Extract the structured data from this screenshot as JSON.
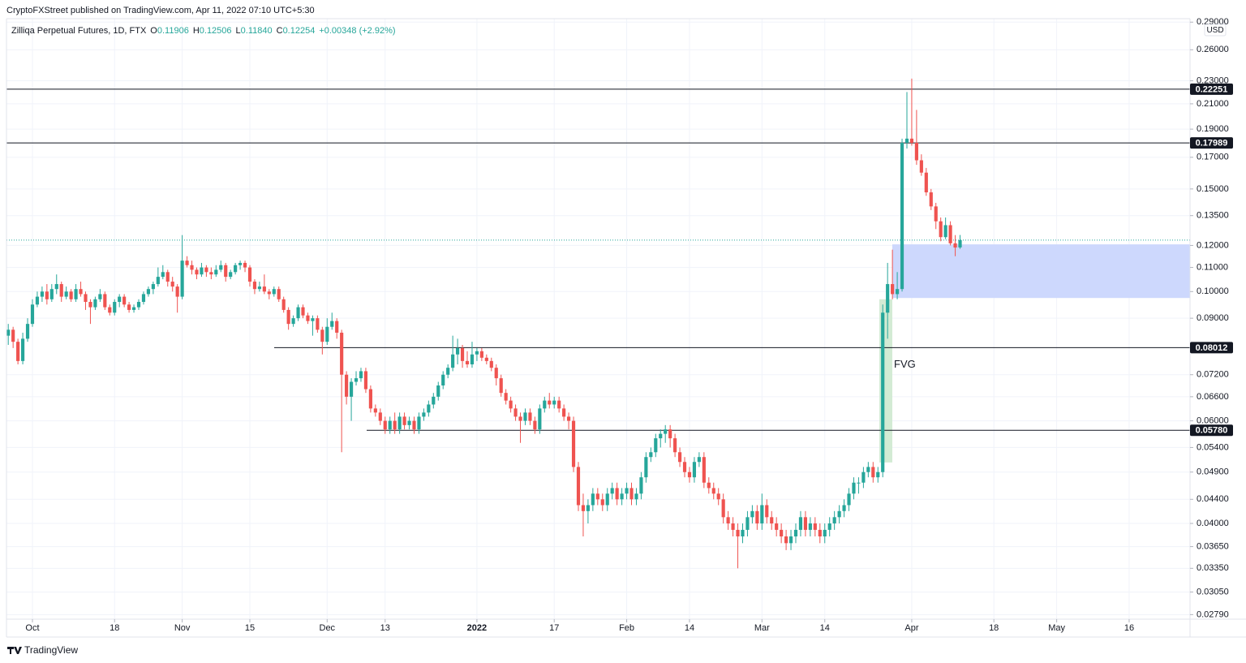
{
  "header": "CryptoFXStreet published on TradingView.com, Apr 11, 2022 07:10 UTC+5:30",
  "footer": "TradingView",
  "chart_data": {
    "type": "candlestick",
    "title": "Zilliqa Perpetual Futures, 1D, FTX",
    "legend": [
      {
        "key": "O",
        "value": "0.11906"
      },
      {
        "key": "H",
        "value": "0.12506"
      },
      {
        "key": "L",
        "value": "0.11840"
      },
      {
        "key": "C",
        "value": "0.12254"
      }
    ],
    "change": "+0.00348 (+2.92%)",
    "currency": "USD",
    "colors": {
      "up": "#26a69a",
      "down": "#ef5350"
    },
    "log_scale": true,
    "grid": true,
    "xlim": [
      -0.37,
      244.6
    ],
    "xticks": [
      {
        "value": 5,
        "label": "Oct"
      },
      {
        "value": 22,
        "label": "18"
      },
      {
        "value": 36,
        "label": "Nov"
      },
      {
        "value": 50,
        "label": "15"
      },
      {
        "value": 66,
        "label": "Dec"
      },
      {
        "value": 78,
        "label": "13"
      },
      {
        "value": 97,
        "label": "2022"
      },
      {
        "value": 113,
        "label": "17"
      },
      {
        "value": 128,
        "label": "Feb"
      },
      {
        "value": 141,
        "label": "14"
      },
      {
        "value": 156,
        "label": "Mar"
      },
      {
        "value": 169,
        "label": "14"
      },
      {
        "value": 187,
        "label": "Apr"
      },
      {
        "value": 204,
        "label": "18"
      },
      {
        "value": 217,
        "label": "May"
      },
      {
        "value": 232,
        "label": "16"
      }
    ],
    "ylim": [
      0.0274,
      0.294
    ],
    "yticks": [
      {
        "value": 0.29,
        "label": "0.29000"
      },
      {
        "value": 0.26,
        "label": "0.26000"
      },
      {
        "value": 0.23,
        "label": "0.23000"
      },
      {
        "value": 0.21,
        "label": "0.21000"
      },
      {
        "value": 0.19,
        "label": "0.19000"
      },
      {
        "value": 0.17,
        "label": "0.17000"
      },
      {
        "value": 0.15,
        "label": "0.15000"
      },
      {
        "value": 0.135,
        "label": "0.13500"
      },
      {
        "value": 0.12,
        "label": "0.12000"
      },
      {
        "value": 0.11,
        "label": "0.11000"
      },
      {
        "value": 0.1,
        "label": "0.10000"
      },
      {
        "value": 0.09,
        "label": "0.09000"
      },
      {
        "value": 0.072,
        "label": "0.07200"
      },
      {
        "value": 0.066,
        "label": "0.06600"
      },
      {
        "value": 0.06,
        "label": "0.06000"
      },
      {
        "value": 0.054,
        "label": "0.05400"
      },
      {
        "value": 0.049,
        "label": "0.04900"
      },
      {
        "value": 0.044,
        "label": "0.04400"
      },
      {
        "value": 0.04,
        "label": "0.04000"
      },
      {
        "value": 0.0365,
        "label": "0.03650"
      },
      {
        "value": 0.0335,
        "label": "0.03350"
      },
      {
        "value": 0.0305,
        "label": "0.03050"
      },
      {
        "value": 0.0279,
        "label": "0.02790"
      }
    ],
    "levels": [
      0.22251,
      0.17989,
      0.08012,
      {
        "value": 0.0578,
        "label": "0.05780"
      }
    ],
    "zones": [
      {
        "label": "FVG",
        "range": [
          0.0509,
          0.097
        ],
        "color": "#d3ebd4"
      },
      {
        "range": [
          0.0975,
          0.1205
        ],
        "color": "#cdd8fd"
      }
    ],
    "ohlc": [
      [
        0.084,
        0.088,
        0.081,
        0.086
      ],
      [
        0.086,
        0.087,
        0.08,
        0.082
      ],
      [
        0.082,
        0.083,
        0.075,
        0.076
      ],
      [
        0.076,
        0.085,
        0.075,
        0.083
      ],
      [
        0.083,
        0.09,
        0.082,
        0.088
      ],
      [
        0.088,
        0.097,
        0.087,
        0.095
      ],
      [
        0.095,
        0.1,
        0.094,
        0.098
      ],
      [
        0.098,
        0.102,
        0.096,
        0.1
      ],
      [
        0.1,
        0.103,
        0.095,
        0.097
      ],
      [
        0.097,
        0.103,
        0.096,
        0.101
      ],
      [
        0.101,
        0.107,
        0.099,
        0.103
      ],
      [
        0.103,
        0.104,
        0.096,
        0.098
      ],
      [
        0.098,
        0.102,
        0.097,
        0.1
      ],
      [
        0.1,
        0.101,
        0.096,
        0.097
      ],
      [
        0.097,
        0.103,
        0.096,
        0.101
      ],
      [
        0.101,
        0.104,
        0.098,
        0.099
      ],
      [
        0.099,
        0.1,
        0.093,
        0.096
      ],
      [
        0.096,
        0.097,
        0.088,
        0.094
      ],
      [
        0.094,
        0.098,
        0.093,
        0.097
      ],
      [
        0.097,
        0.101,
        0.096,
        0.099
      ],
      [
        0.099,
        0.1,
        0.093,
        0.094
      ],
      [
        0.094,
        0.095,
        0.091,
        0.092
      ],
      [
        0.092,
        0.097,
        0.091,
        0.096
      ],
      [
        0.096,
        0.099,
        0.094,
        0.098
      ],
      [
        0.098,
        0.099,
        0.094,
        0.095
      ],
      [
        0.095,
        0.096,
        0.092,
        0.093
      ],
      [
        0.093,
        0.095,
        0.092,
        0.094
      ],
      [
        0.094,
        0.097,
        0.093,
        0.096
      ],
      [
        0.096,
        0.1,
        0.095,
        0.099
      ],
      [
        0.099,
        0.102,
        0.098,
        0.101
      ],
      [
        0.101,
        0.104,
        0.099,
        0.103
      ],
      [
        0.103,
        0.11,
        0.102,
        0.106
      ],
      [
        0.106,
        0.111,
        0.105,
        0.108
      ],
      [
        0.108,
        0.109,
        0.102,
        0.104
      ],
      [
        0.104,
        0.106,
        0.1,
        0.102
      ],
      [
        0.102,
        0.103,
        0.092,
        0.098
      ],
      [
        0.098,
        0.125,
        0.097,
        0.113
      ],
      [
        0.113,
        0.115,
        0.11,
        0.111
      ],
      [
        0.111,
        0.113,
        0.107,
        0.109
      ],
      [
        0.109,
        0.11,
        0.105,
        0.107
      ],
      [
        0.107,
        0.112,
        0.106,
        0.11
      ],
      [
        0.11,
        0.111,
        0.106,
        0.108
      ],
      [
        0.108,
        0.11,
        0.105,
        0.107
      ],
      [
        0.107,
        0.111,
        0.106,
        0.109
      ],
      [
        0.109,
        0.113,
        0.108,
        0.111
      ],
      [
        0.111,
        0.112,
        0.104,
        0.106
      ],
      [
        0.106,
        0.109,
        0.105,
        0.108
      ],
      [
        0.108,
        0.112,
        0.107,
        0.111
      ],
      [
        0.111,
        0.113,
        0.109,
        0.112
      ],
      [
        0.112,
        0.113,
        0.108,
        0.11
      ],
      [
        0.11,
        0.111,
        0.102,
        0.104
      ],
      [
        0.104,
        0.105,
        0.099,
        0.101
      ],
      [
        0.101,
        0.104,
        0.1,
        0.102
      ],
      [
        0.102,
        0.107,
        0.099,
        0.1
      ],
      [
        0.1,
        0.101,
        0.097,
        0.099
      ],
      [
        0.099,
        0.102,
        0.098,
        0.101
      ],
      [
        0.101,
        0.102,
        0.096,
        0.097
      ],
      [
        0.097,
        0.098,
        0.092,
        0.093
      ],
      [
        0.093,
        0.094,
        0.086,
        0.088
      ],
      [
        0.088,
        0.091,
        0.087,
        0.09
      ],
      [
        0.09,
        0.095,
        0.089,
        0.094
      ],
      [
        0.094,
        0.095,
        0.09,
        0.091
      ],
      [
        0.091,
        0.092,
        0.088,
        0.089
      ],
      [
        0.089,
        0.091,
        0.084,
        0.09
      ],
      [
        0.09,
        0.091,
        0.085,
        0.086
      ],
      [
        0.086,
        0.087,
        0.078,
        0.082
      ],
      [
        0.082,
        0.09,
        0.081,
        0.087
      ],
      [
        0.087,
        0.092,
        0.086,
        0.089
      ],
      [
        0.089,
        0.09,
        0.083,
        0.085
      ],
      [
        0.085,
        0.086,
        0.053,
        0.072
      ],
      [
        0.072,
        0.073,
        0.064,
        0.066
      ],
      [
        0.066,
        0.071,
        0.06,
        0.07
      ],
      [
        0.07,
        0.073,
        0.069,
        0.071
      ],
      [
        0.071,
        0.074,
        0.07,
        0.073
      ],
      [
        0.073,
        0.074,
        0.067,
        0.068
      ],
      [
        0.068,
        0.069,
        0.062,
        0.063
      ],
      [
        0.063,
        0.064,
        0.061,
        0.062
      ],
      [
        0.062,
        0.063,
        0.059,
        0.06
      ],
      [
        0.06,
        0.061,
        0.057,
        0.058
      ],
      [
        0.058,
        0.061,
        0.057,
        0.06
      ],
      [
        0.06,
        0.062,
        0.057,
        0.058
      ],
      [
        0.058,
        0.062,
        0.057,
        0.061
      ],
      [
        0.061,
        0.062,
        0.058,
        0.059
      ],
      [
        0.059,
        0.061,
        0.058,
        0.06
      ],
      [
        0.06,
        0.061,
        0.057,
        0.058
      ],
      [
        0.058,
        0.062,
        0.057,
        0.061
      ],
      [
        0.061,
        0.063,
        0.06,
        0.062
      ],
      [
        0.062,
        0.065,
        0.061,
        0.064
      ],
      [
        0.064,
        0.067,
        0.063,
        0.066
      ],
      [
        0.066,
        0.07,
        0.065,
        0.069
      ],
      [
        0.069,
        0.073,
        0.068,
        0.072
      ],
      [
        0.072,
        0.075,
        0.071,
        0.074
      ],
      [
        0.074,
        0.084,
        0.073,
        0.078
      ],
      [
        0.078,
        0.083,
        0.075,
        0.08
      ],
      [
        0.08,
        0.081,
        0.074,
        0.076
      ],
      [
        0.076,
        0.079,
        0.074,
        0.075
      ],
      [
        0.075,
        0.082,
        0.074,
        0.078
      ],
      [
        0.078,
        0.08,
        0.076,
        0.079
      ],
      [
        0.079,
        0.08,
        0.076,
        0.077
      ],
      [
        0.077,
        0.078,
        0.075,
        0.076
      ],
      [
        0.076,
        0.077,
        0.073,
        0.074
      ],
      [
        0.074,
        0.075,
        0.069,
        0.071
      ],
      [
        0.071,
        0.072,
        0.066,
        0.067
      ],
      [
        0.067,
        0.068,
        0.064,
        0.065
      ],
      [
        0.065,
        0.066,
        0.062,
        0.063
      ],
      [
        0.063,
        0.064,
        0.06,
        0.061
      ],
      [
        0.061,
        0.062,
        0.055,
        0.06
      ],
      [
        0.06,
        0.063,
        0.059,
        0.062
      ],
      [
        0.062,
        0.063,
        0.059,
        0.06
      ],
      [
        0.06,
        0.061,
        0.057,
        0.058
      ],
      [
        0.058,
        0.064,
        0.057,
        0.063
      ],
      [
        0.063,
        0.066,
        0.062,
        0.065
      ],
      [
        0.065,
        0.067,
        0.063,
        0.064
      ],
      [
        0.064,
        0.066,
        0.063,
        0.065
      ],
      [
        0.065,
        0.066,
        0.062,
        0.063
      ],
      [
        0.063,
        0.064,
        0.06,
        0.061
      ],
      [
        0.061,
        0.062,
        0.058,
        0.06
      ],
      [
        0.06,
        0.061,
        0.049,
        0.05
      ],
      [
        0.05,
        0.051,
        0.042,
        0.043
      ],
      [
        0.043,
        0.045,
        0.038,
        0.042
      ],
      [
        0.042,
        0.044,
        0.04,
        0.043
      ],
      [
        0.043,
        0.046,
        0.042,
        0.045
      ],
      [
        0.045,
        0.046,
        0.043,
        0.044
      ],
      [
        0.044,
        0.045,
        0.042,
        0.043
      ],
      [
        0.043,
        0.046,
        0.042,
        0.045
      ],
      [
        0.045,
        0.047,
        0.044,
        0.046
      ],
      [
        0.046,
        0.047,
        0.043,
        0.044
      ],
      [
        0.044,
        0.046,
        0.043,
        0.045
      ],
      [
        0.045,
        0.047,
        0.044,
        0.046
      ],
      [
        0.046,
        0.047,
        0.043,
        0.044
      ],
      [
        0.044,
        0.046,
        0.043,
        0.045
      ],
      [
        0.045,
        0.049,
        0.044,
        0.048
      ],
      [
        0.048,
        0.053,
        0.047,
        0.052
      ],
      [
        0.052,
        0.054,
        0.051,
        0.053
      ],
      [
        0.053,
        0.057,
        0.052,
        0.056
      ],
      [
        0.056,
        0.058,
        0.054,
        0.057
      ],
      [
        0.057,
        0.059,
        0.055,
        0.058
      ],
      [
        0.058,
        0.059,
        0.054,
        0.056
      ],
      [
        0.056,
        0.057,
        0.052,
        0.053
      ],
      [
        0.053,
        0.054,
        0.05,
        0.051
      ],
      [
        0.051,
        0.052,
        0.048,
        0.049
      ],
      [
        0.049,
        0.05,
        0.047,
        0.048
      ],
      [
        0.048,
        0.052,
        0.047,
        0.051
      ],
      [
        0.051,
        0.053,
        0.05,
        0.052
      ],
      [
        0.052,
        0.053,
        0.046,
        0.047
      ],
      [
        0.047,
        0.048,
        0.045,
        0.046
      ],
      [
        0.046,
        0.047,
        0.044,
        0.045
      ],
      [
        0.045,
        0.046,
        0.043,
        0.044
      ],
      [
        0.044,
        0.045,
        0.04,
        0.041
      ],
      [
        0.041,
        0.042,
        0.039,
        0.04
      ],
      [
        0.04,
        0.041,
        0.038,
        0.039
      ],
      [
        0.039,
        0.04,
        0.0335,
        0.038
      ],
      [
        0.038,
        0.04,
        0.037,
        0.039
      ],
      [
        0.039,
        0.042,
        0.038,
        0.041
      ],
      [
        0.041,
        0.043,
        0.04,
        0.042
      ],
      [
        0.042,
        0.043,
        0.039,
        0.04
      ],
      [
        0.04,
        0.045,
        0.039,
        0.043
      ],
      [
        0.043,
        0.044,
        0.04,
        0.041
      ],
      [
        0.041,
        0.042,
        0.039,
        0.04
      ],
      [
        0.04,
        0.041,
        0.038,
        0.039
      ],
      [
        0.039,
        0.04,
        0.037,
        0.038
      ],
      [
        0.038,
        0.039,
        0.036,
        0.037
      ],
      [
        0.037,
        0.039,
        0.036,
        0.038
      ],
      [
        0.038,
        0.04,
        0.037,
        0.039
      ],
      [
        0.039,
        0.042,
        0.038,
        0.041
      ],
      [
        0.041,
        0.042,
        0.038,
        0.039
      ],
      [
        0.039,
        0.041,
        0.038,
        0.04
      ],
      [
        0.04,
        0.041,
        0.038,
        0.039
      ],
      [
        0.039,
        0.04,
        0.037,
        0.038
      ],
      [
        0.038,
        0.04,
        0.037,
        0.039
      ],
      [
        0.039,
        0.041,
        0.038,
        0.04
      ],
      [
        0.04,
        0.042,
        0.039,
        0.041
      ],
      [
        0.041,
        0.043,
        0.04,
        0.042
      ],
      [
        0.042,
        0.044,
        0.041,
        0.043
      ],
      [
        0.043,
        0.046,
        0.042,
        0.045
      ],
      [
        0.045,
        0.048,
        0.044,
        0.047
      ],
      [
        0.047,
        0.048,
        0.045,
        0.047
      ],
      [
        0.047,
        0.05,
        0.046,
        0.049
      ],
      [
        0.049,
        0.051,
        0.048,
        0.05
      ],
      [
        0.05,
        0.051,
        0.047,
        0.048
      ],
      [
        0.048,
        0.05,
        0.047,
        0.049
      ],
      [
        0.049,
        0.095,
        0.048,
        0.092
      ],
      [
        0.092,
        0.112,
        0.083,
        0.103
      ],
      [
        0.103,
        0.118,
        0.097,
        0.099
      ],
      [
        0.099,
        0.108,
        0.097,
        0.101
      ],
      [
        0.101,
        0.183,
        0.1,
        0.18
      ],
      [
        0.18,
        0.22,
        0.176,
        0.183
      ],
      [
        0.183,
        0.232,
        0.178,
        0.18
      ],
      [
        0.18,
        0.205,
        0.165,
        0.168
      ],
      [
        0.168,
        0.172,
        0.158,
        0.16
      ],
      [
        0.16,
        0.163,
        0.146,
        0.148
      ],
      [
        0.148,
        0.15,
        0.138,
        0.14
      ],
      [
        0.14,
        0.142,
        0.128,
        0.132
      ],
      [
        0.132,
        0.134,
        0.122,
        0.124
      ],
      [
        0.124,
        0.134,
        0.123,
        0.13
      ],
      [
        0.13,
        0.132,
        0.12,
        0.121
      ],
      [
        0.121,
        0.125,
        0.115,
        0.119
      ],
      [
        0.11906,
        0.12506,
        0.1184,
        0.12254
      ]
    ]
  }
}
